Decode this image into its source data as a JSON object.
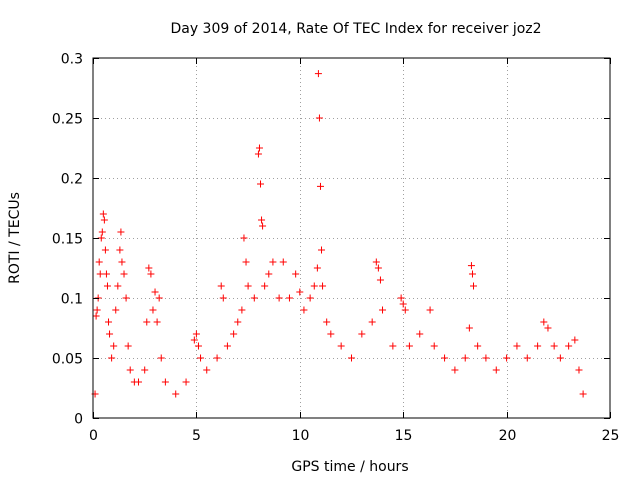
{
  "chart_data": {
    "type": "scatter",
    "title": "Day 309 of 2014, Rate Of TEC Index for receiver joz2",
    "xlabel": "GPS time / hours",
    "ylabel": "ROTI / TECUs",
    "xlim": [
      0,
      25
    ],
    "ylim": [
      0,
      0.3
    ],
    "xticks": [
      0,
      5,
      10,
      15,
      20,
      25
    ],
    "xtick_labels": [
      "0",
      "5",
      "10",
      "15",
      "20",
      "25"
    ],
    "yticks": [
      0,
      0.05,
      0.1,
      0.15,
      0.2,
      0.25,
      0.3
    ],
    "ytick_labels": [
      "0",
      "0.05",
      "0.1",
      "0.15",
      "0.2",
      "0.25",
      "0.3"
    ],
    "grid": true,
    "marker": "+",
    "marker_color": "#ff0000",
    "series": [
      {
        "name": "ROTI",
        "points": [
          [
            0.1,
            0.02
          ],
          [
            0.15,
            0.085
          ],
          [
            0.2,
            0.09
          ],
          [
            0.25,
            0.1
          ],
          [
            0.3,
            0.13
          ],
          [
            0.35,
            0.12
          ],
          [
            0.4,
            0.15
          ],
          [
            0.45,
            0.155
          ],
          [
            0.5,
            0.17
          ],
          [
            0.55,
            0.165
          ],
          [
            0.6,
            0.14
          ],
          [
            0.65,
            0.12
          ],
          [
            0.7,
            0.11
          ],
          [
            0.75,
            0.08
          ],
          [
            0.8,
            0.07
          ],
          [
            0.9,
            0.05
          ],
          [
            1.0,
            0.06
          ],
          [
            1.1,
            0.09
          ],
          [
            1.2,
            0.11
          ],
          [
            1.3,
            0.14
          ],
          [
            1.35,
            0.155
          ],
          [
            1.4,
            0.13
          ],
          [
            1.5,
            0.12
          ],
          [
            1.6,
            0.1
          ],
          [
            1.7,
            0.06
          ],
          [
            1.8,
            0.04
          ],
          [
            2.0,
            0.03
          ],
          [
            2.2,
            0.03
          ],
          [
            2.5,
            0.04
          ],
          [
            2.6,
            0.08
          ],
          [
            2.7,
            0.125
          ],
          [
            2.8,
            0.12
          ],
          [
            2.9,
            0.09
          ],
          [
            3.0,
            0.105
          ],
          [
            3.1,
            0.08
          ],
          [
            3.2,
            0.1
          ],
          [
            3.3,
            0.05
          ],
          [
            3.5,
            0.03
          ],
          [
            4.0,
            0.02
          ],
          [
            4.5,
            0.03
          ],
          [
            4.9,
            0.065
          ],
          [
            5.0,
            0.07
          ],
          [
            5.1,
            0.06
          ],
          [
            5.2,
            0.05
          ],
          [
            5.5,
            0.04
          ],
          [
            6.0,
            0.05
          ],
          [
            6.2,
            0.11
          ],
          [
            6.3,
            0.1
          ],
          [
            6.5,
            0.06
          ],
          [
            6.8,
            0.07
          ],
          [
            7.0,
            0.08
          ],
          [
            7.2,
            0.09
          ],
          [
            7.3,
            0.15
          ],
          [
            7.4,
            0.13
          ],
          [
            7.5,
            0.11
          ],
          [
            7.8,
            0.1
          ],
          [
            8.0,
            0.22
          ],
          [
            8.05,
            0.225
          ],
          [
            8.1,
            0.195
          ],
          [
            8.15,
            0.165
          ],
          [
            8.2,
            0.16
          ],
          [
            8.3,
            0.11
          ],
          [
            8.5,
            0.12
          ],
          [
            8.7,
            0.13
          ],
          [
            9.0,
            0.1
          ],
          [
            9.2,
            0.13
          ],
          [
            9.5,
            0.1
          ],
          [
            9.8,
            0.12
          ],
          [
            10.0,
            0.105
          ],
          [
            10.2,
            0.09
          ],
          [
            10.5,
            0.1
          ],
          [
            10.7,
            0.11
          ],
          [
            10.85,
            0.125
          ],
          [
            10.9,
            0.287
          ],
          [
            10.95,
            0.25
          ],
          [
            11.0,
            0.193
          ],
          [
            11.05,
            0.14
          ],
          [
            11.1,
            0.11
          ],
          [
            11.3,
            0.08
          ],
          [
            11.5,
            0.07
          ],
          [
            12.0,
            0.06
          ],
          [
            12.5,
            0.05
          ],
          [
            13.0,
            0.07
          ],
          [
            13.5,
            0.08
          ],
          [
            13.7,
            0.13
          ],
          [
            13.8,
            0.125
          ],
          [
            13.9,
            0.115
          ],
          [
            14.0,
            0.09
          ],
          [
            14.5,
            0.06
          ],
          [
            14.9,
            0.1
          ],
          [
            15.0,
            0.095
          ],
          [
            15.1,
            0.09
          ],
          [
            15.3,
            0.06
          ],
          [
            15.8,
            0.07
          ],
          [
            16.3,
            0.09
          ],
          [
            16.5,
            0.06
          ],
          [
            17.0,
            0.05
          ],
          [
            17.5,
            0.04
          ],
          [
            18.0,
            0.05
          ],
          [
            18.2,
            0.075
          ],
          [
            18.3,
            0.127
          ],
          [
            18.35,
            0.12
          ],
          [
            18.4,
            0.11
          ],
          [
            18.6,
            0.06
          ],
          [
            19.0,
            0.05
          ],
          [
            19.5,
            0.04
          ],
          [
            20.0,
            0.05
          ],
          [
            20.5,
            0.06
          ],
          [
            21.0,
            0.05
          ],
          [
            21.5,
            0.06
          ],
          [
            21.8,
            0.08
          ],
          [
            22.0,
            0.075
          ],
          [
            22.3,
            0.06
          ],
          [
            22.6,
            0.05
          ],
          [
            23.0,
            0.06
          ],
          [
            23.3,
            0.065
          ],
          [
            23.5,
            0.04
          ],
          [
            23.7,
            0.02
          ]
        ]
      }
    ]
  }
}
